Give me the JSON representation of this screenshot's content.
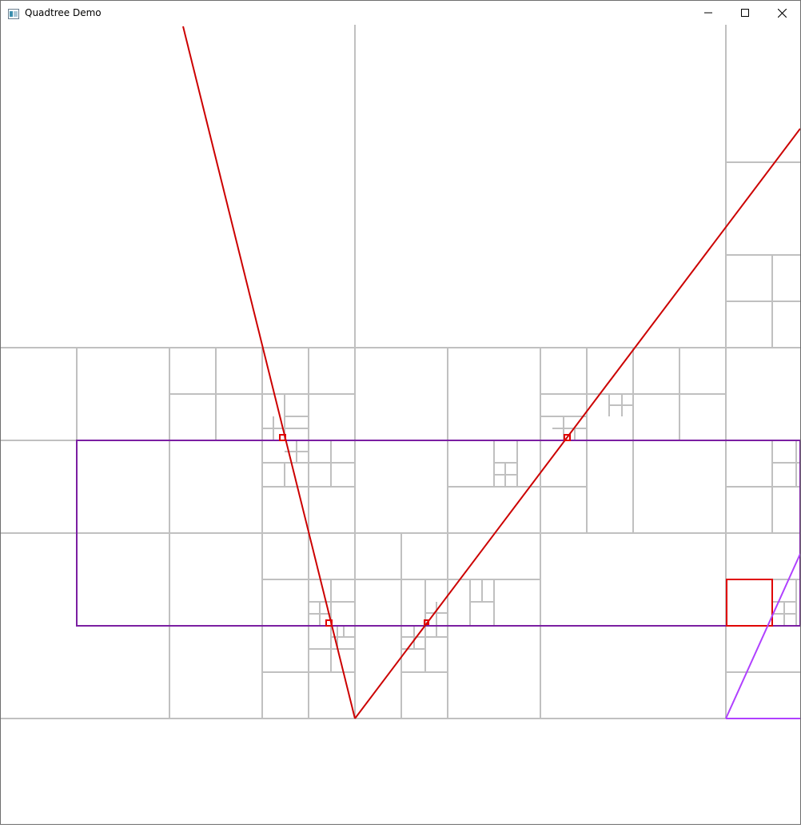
{
  "window": {
    "title": "Quadtree Demo",
    "icons": {
      "app": "app-window-icon",
      "minimize": "minimize-icon",
      "maximize": "maximize-icon",
      "close": "close-icon"
    }
  },
  "colors": {
    "grid": "#c0c0c0",
    "ray": "#cc0000",
    "query_rect": "#7b1fa2",
    "highlight": "#e00000",
    "ray_secondary": "#b040ff"
  }
}
